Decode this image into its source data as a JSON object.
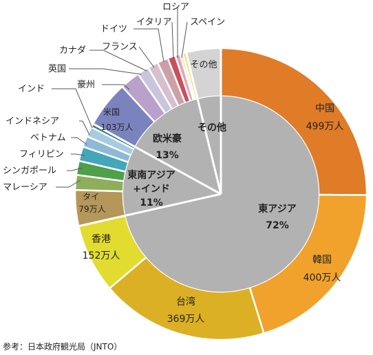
{
  "chart_data": {
    "type": "pie",
    "subtype": "nested-donut",
    "title": "",
    "source": "参考：日本政府観光局（JNTO）",
    "inner": [
      {
        "name": "東アジア",
        "percent": 72,
        "label": "東アジア",
        "value_label": "72%",
        "color": "#b2b2b2"
      },
      {
        "name": "東南アジア+インド",
        "percent": 11,
        "label": "東南アジア\n+インド",
        "value_label": "11%",
        "color": "#b2b2b2"
      },
      {
        "name": "欧米豪",
        "percent": 13,
        "label": "欧米豪",
        "value_label": "13%",
        "color": "#b2b2b2"
      },
      {
        "name": "その他",
        "percent": 4,
        "label": "その他",
        "value_label": "",
        "color": "#b2b2b2"
      }
    ],
    "outer": [
      {
        "name": "中国",
        "value": 499,
        "value_label": "499万人",
        "color": "#e07b27",
        "group": "東アジア"
      },
      {
        "name": "韓国",
        "value": 400,
        "value_label": "400万人",
        "color": "#f0a22c",
        "group": "東アジア"
      },
      {
        "name": "台湾",
        "value": 369,
        "value_label": "369万人",
        "color": "#dcb024",
        "group": "東アジア"
      },
      {
        "name": "香港",
        "value": 152,
        "value_label": "152万人",
        "color": "#e3dc30",
        "group": "東アジア"
      },
      {
        "name": "タイ",
        "value": 79,
        "value_label": "79万人",
        "color": "#b5975a",
        "group": "東南アジア+インド"
      },
      {
        "name": "マレーシア",
        "value": 33,
        "value_label": "",
        "color": "#8eae5a",
        "group": "東南アジア+インド"
      },
      {
        "name": "シンガポール",
        "value": 31,
        "value_label": "",
        "color": "#4ea04a",
        "group": "東南アジア+インド"
      },
      {
        "name": "フィリピン",
        "value": 32,
        "value_label": "",
        "color": "#44a6b9",
        "group": "東南アジア+インド"
      },
      {
        "name": "ベトナム",
        "value": 24,
        "value_label": "",
        "color": "#8fb8d6",
        "group": "東南アジア+インド"
      },
      {
        "name": "インドネシア",
        "value": 22,
        "value_label": "",
        "color": "#a7cbe0",
        "group": "東南アジア+インド"
      },
      {
        "name": "インド",
        "value": 8,
        "value_label": "",
        "color": "#3b7a86",
        "group": "東南アジア+インド"
      },
      {
        "name": "米国",
        "value": 103,
        "value_label": "103万人",
        "color": "#7b83bf",
        "group": "欧米豪"
      },
      {
        "name": "豪州",
        "value": 44,
        "value_label": "",
        "color": "#b9a1cc",
        "group": "欧米豪"
      },
      {
        "name": "英国",
        "value": 26,
        "value_label": "",
        "color": "#c9c5dd",
        "group": "欧米豪"
      },
      {
        "name": "カナダ",
        "value": 23,
        "value_label": "",
        "color": "#d6bfcf",
        "group": "欧米豪"
      },
      {
        "name": "フランス",
        "value": 24,
        "value_label": "",
        "color": "#cda0a8",
        "group": "欧米豪"
      },
      {
        "name": "ドイツ",
        "value": 17,
        "value_label": "",
        "color": "#c9505b",
        "group": "欧米豪"
      },
      {
        "name": "イタリア",
        "value": 11,
        "value_label": "",
        "color": "#e2a7b4",
        "group": "欧米豪"
      },
      {
        "name": "ロシア",
        "value": 6,
        "value_label": "",
        "color": "#f0dba6",
        "group": "欧米豪"
      },
      {
        "name": "スペイン",
        "value": 8,
        "value_label": "",
        "color": "#ece38e",
        "group": "欧米豪"
      },
      {
        "name": "その他",
        "value": 76,
        "value_label": "",
        "color": "#d4d4d4",
        "group": "その他"
      }
    ]
  }
}
